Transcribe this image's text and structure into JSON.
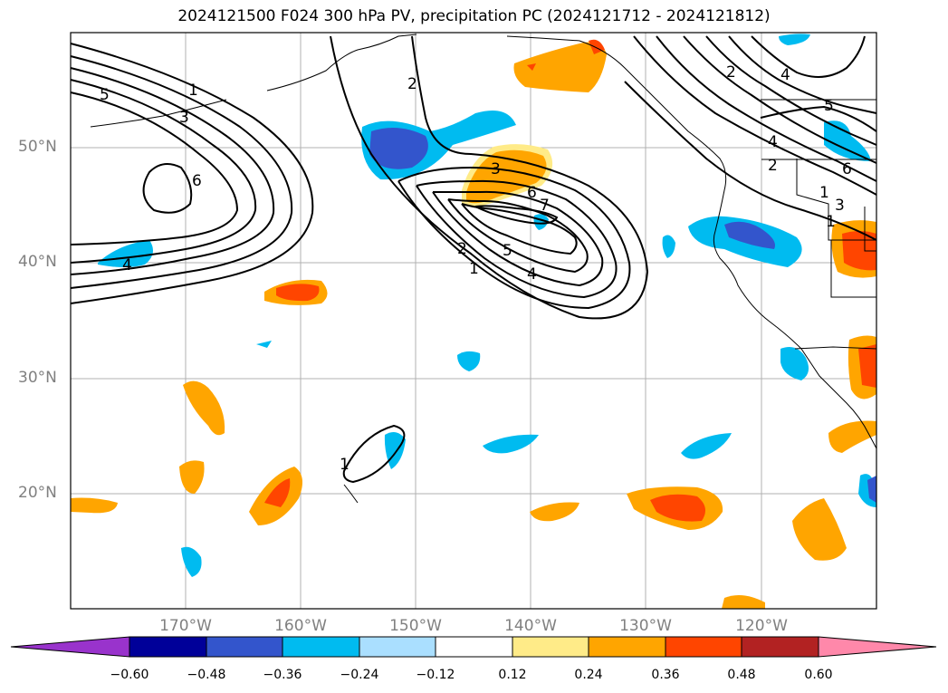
{
  "title": "2024121500 F024 300 hPa PV, precipitation PC (2024121712 - 2024121812)",
  "lat_labels": [
    "50°N",
    "40°N",
    "30°N",
    "20°N"
  ],
  "lon_labels": [
    "170°W",
    "160°W",
    "150°W",
    "140°W",
    "130°W",
    "120°W"
  ],
  "colorbar": {
    "tick_labels": [
      "−0.60",
      "−0.48",
      "−0.36",
      "−0.24",
      "−0.12",
      "0.12",
      "0.24",
      "0.36",
      "0.48",
      "0.60"
    ],
    "colors": [
      "#9933cc",
      "#000099",
      "#3355cc",
      "#00bbf0",
      "#aadfff",
      "#ffffff",
      "#ffeb88",
      "#ffa500",
      "#ff4500",
      "#b22222",
      "#ff88aa"
    ]
  },
  "contour_labels": [
    "1",
    "2",
    "3",
    "4",
    "5",
    "6",
    "7"
  ],
  "axes": {
    "lon_range": [
      -180,
      -110
    ],
    "lat_range": [
      10,
      60
    ]
  }
}
